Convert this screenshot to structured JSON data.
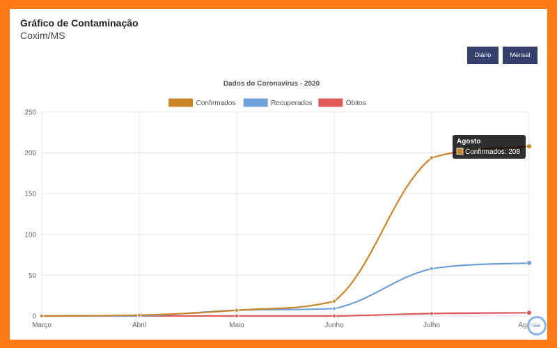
{
  "header": {
    "title": "Gráfico de Contaminação",
    "subtitle": "Coxim/MS"
  },
  "buttons": {
    "daily": "Diário",
    "monthly": "Mensal"
  },
  "chart_data": {
    "type": "line",
    "title": "Dados do Coronavirus - 2020",
    "categories": [
      "Março",
      "Abril",
      "Maio",
      "Junho",
      "Julho",
      "Agosto"
    ],
    "ylim": [
      0,
      250
    ],
    "yticks": [
      0,
      50,
      100,
      150,
      200,
      250
    ],
    "grid": true,
    "legend_position": "top-center",
    "series": [
      {
        "name": "Confirmados",
        "color": "#c8852a",
        "values": [
          0,
          1,
          7,
          18,
          194,
          208
        ]
      },
      {
        "name": "Recuperados",
        "color": "#6fa0dc",
        "values": [
          0,
          0,
          7,
          9,
          58,
          65
        ]
      },
      {
        "name": "Óbitos",
        "color": "#e05a5a",
        "values": [
          0,
          0,
          0,
          0,
          3,
          4
        ]
      }
    ],
    "tooltip": {
      "title": "Agosto",
      "label": "Confirmados: 208"
    }
  }
}
